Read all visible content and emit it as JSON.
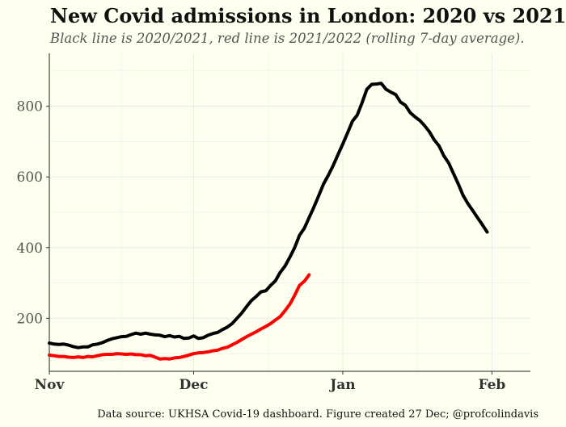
{
  "chart_data": {
    "type": "line",
    "title": "New Covid admissions in London: 2020 vs 2021",
    "subtitle": "Black line is 2020/2021, red line is 2021/2022 (rolling 7-day average).",
    "caption": "Data source: UKHSA Covid-19 dashboard. Figure created 27 Dec; @profcolindavis",
    "xlabel": "",
    "ylabel": "",
    "xlim": [
      0,
      100
    ],
    "ylim": [
      50,
      950
    ],
    "x_ticks": [
      {
        "value": 0,
        "label": "Nov"
      },
      {
        "value": 30,
        "label": "Dec"
      },
      {
        "value": 61,
        "label": "Jan"
      },
      {
        "value": 92,
        "label": "Feb"
      }
    ],
    "y_ticks": [
      200,
      400,
      600,
      800
    ],
    "colors": {
      "black_series": "#000000",
      "red_series": "#ff0000",
      "background": "#fffff0",
      "grid": "#ebebeb"
    },
    "series": [
      {
        "name": "2020/2021",
        "color": "#000000",
        "points": [
          [
            0,
            130
          ],
          [
            1,
            127
          ],
          [
            2,
            126
          ],
          [
            3,
            127
          ],
          [
            4,
            124
          ],
          [
            5,
            120
          ],
          [
            6,
            117
          ],
          [
            7,
            119
          ],
          [
            8,
            119
          ],
          [
            9,
            125
          ],
          [
            10,
            127
          ],
          [
            11,
            131
          ],
          [
            12,
            137
          ],
          [
            13,
            142
          ],
          [
            14,
            145
          ],
          [
            15,
            148
          ],
          [
            16,
            149
          ],
          [
            17,
            154
          ],
          [
            18,
            158
          ],
          [
            19,
            155
          ],
          [
            20,
            158
          ],
          [
            21,
            155
          ],
          [
            22,
            153
          ],
          [
            23,
            152
          ],
          [
            24,
            148
          ],
          [
            25,
            151
          ],
          [
            26,
            147
          ],
          [
            27,
            149
          ],
          [
            28,
            143
          ],
          [
            29,
            144
          ],
          [
            30,
            150
          ],
          [
            31,
            143
          ],
          [
            32,
            145
          ],
          [
            33,
            152
          ],
          [
            34,
            157
          ],
          [
            35,
            160
          ],
          [
            36,
            168
          ],
          [
            37,
            175
          ],
          [
            38,
            185
          ],
          [
            39,
            200
          ],
          [
            40,
            215
          ],
          [
            41,
            233
          ],
          [
            42,
            250
          ],
          [
            43,
            262
          ],
          [
            44,
            275
          ],
          [
            45,
            278
          ],
          [
            46,
            293
          ],
          [
            47,
            306
          ],
          [
            48,
            330
          ],
          [
            49,
            348
          ],
          [
            50,
            373
          ],
          [
            51,
            400
          ],
          [
            52,
            435
          ],
          [
            53,
            455
          ],
          [
            54,
            485
          ],
          [
            55,
            515
          ],
          [
            56,
            547
          ],
          [
            57,
            580
          ],
          [
            58,
            605
          ],
          [
            59,
            632
          ],
          [
            60,
            663
          ],
          [
            61,
            693
          ],
          [
            62,
            725
          ],
          [
            63,
            758
          ],
          [
            64,
            775
          ],
          [
            65,
            810
          ],
          [
            66,
            848
          ],
          [
            67,
            862
          ],
          [
            68,
            863
          ],
          [
            69,
            865
          ],
          [
            70,
            848
          ],
          [
            71,
            840
          ],
          [
            72,
            833
          ],
          [
            73,
            812
          ],
          [
            74,
            803
          ],
          [
            75,
            782
          ],
          [
            76,
            770
          ],
          [
            77,
            760
          ],
          [
            78,
            745
          ],
          [
            79,
            728
          ],
          [
            80,
            705
          ],
          [
            81,
            688
          ],
          [
            82,
            660
          ],
          [
            83,
            640
          ],
          [
            84,
            610
          ],
          [
            85,
            580
          ],
          [
            86,
            548
          ],
          [
            87,
            525
          ],
          [
            88,
            505
          ],
          [
            89,
            485
          ],
          [
            90,
            465
          ],
          [
            91,
            444
          ]
        ]
      },
      {
        "name": "2021/2022",
        "color": "#ff0000",
        "points": [
          [
            0,
            96
          ],
          [
            1,
            94
          ],
          [
            2,
            92
          ],
          [
            3,
            92
          ],
          [
            4,
            90
          ],
          [
            5,
            89
          ],
          [
            6,
            91
          ],
          [
            7,
            89
          ],
          [
            8,
            92
          ],
          [
            9,
            91
          ],
          [
            10,
            94
          ],
          [
            11,
            97
          ],
          [
            12,
            98
          ],
          [
            13,
            98
          ],
          [
            14,
            100
          ],
          [
            15,
            99
          ],
          [
            16,
            98
          ],
          [
            17,
            99
          ],
          [
            18,
            97
          ],
          [
            19,
            97
          ],
          [
            20,
            94
          ],
          [
            21,
            95
          ],
          [
            22,
            90
          ],
          [
            23,
            85
          ],
          [
            24,
            86
          ],
          [
            25,
            85
          ],
          [
            26,
            88
          ],
          [
            27,
            89
          ],
          [
            28,
            92
          ],
          [
            29,
            96
          ],
          [
            30,
            100
          ],
          [
            31,
            102
          ],
          [
            32,
            103
          ],
          [
            33,
            105
          ],
          [
            34,
            108
          ],
          [
            35,
            110
          ],
          [
            36,
            115
          ],
          [
            37,
            118
          ],
          [
            38,
            125
          ],
          [
            39,
            132
          ],
          [
            40,
            140
          ],
          [
            41,
            148
          ],
          [
            42,
            155
          ],
          [
            43,
            162
          ],
          [
            44,
            170
          ],
          [
            45,
            177
          ],
          [
            46,
            185
          ],
          [
            47,
            195
          ],
          [
            48,
            205
          ],
          [
            49,
            222
          ],
          [
            50,
            240
          ],
          [
            51,
            265
          ],
          [
            52,
            293
          ],
          [
            53,
            305
          ],
          [
            54,
            323
          ]
        ]
      }
    ]
  }
}
